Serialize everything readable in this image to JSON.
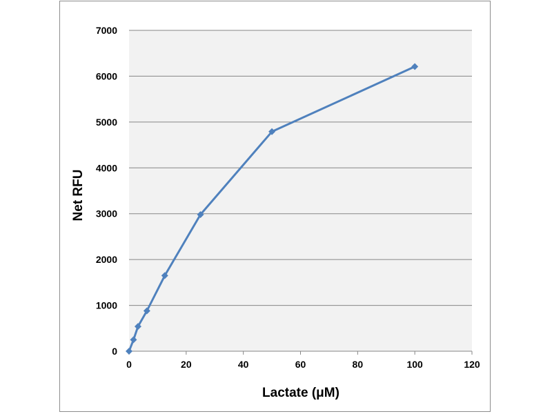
{
  "chart_data": {
    "type": "line",
    "title": "",
    "xlabel": "Lactate (μM)",
    "ylabel": "Net RFU",
    "xlim": [
      0,
      120
    ],
    "ylim": [
      0,
      7000
    ],
    "x_ticks": [
      0,
      20,
      40,
      60,
      80,
      100,
      120
    ],
    "y_ticks": [
      0,
      1000,
      2000,
      3000,
      4000,
      5000,
      6000,
      7000
    ],
    "grid": "horizontal",
    "plot_background": "#f2f2f2",
    "series": [
      {
        "color": "#4f81bd",
        "marker": "diamond",
        "x": [
          0,
          1.56,
          3.13,
          6.25,
          12.5,
          25,
          50,
          100
        ],
        "y": [
          0,
          250,
          540,
          880,
          1650,
          2980,
          4790,
          6210
        ]
      }
    ]
  }
}
